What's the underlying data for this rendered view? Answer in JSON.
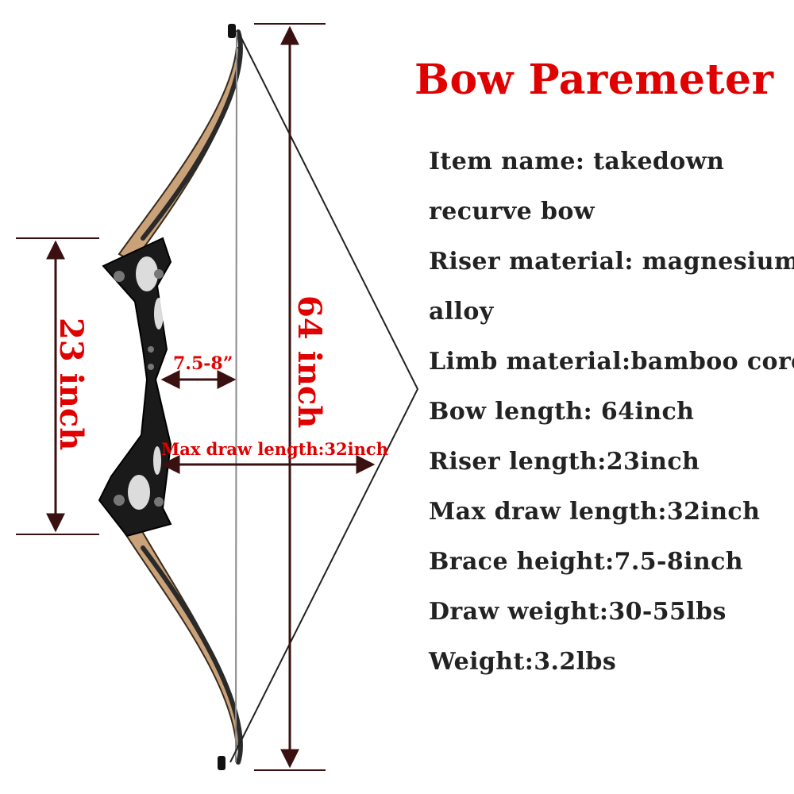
{
  "title": "Bow Paremeter",
  "specs": [
    "Item name: takedown",
    "recurve bow",
    "Riser material: magnesium",
    "alloy",
    "Limb material:bamboo core",
    "Bow length: 64inch",
    "Riser length:23inch",
    "Max draw length:32inch",
    "Brace height:7.5-8inch",
    "Draw weight:30-55lbs",
    "Weight:3.2lbs"
  ],
  "dimensions": {
    "riser": "23 inch",
    "bow_length": "64 inch",
    "brace_height": "7.5-8”",
    "max_draw": "Max draw length:32inch"
  },
  "colors": {
    "accent": "#e00000",
    "text": "#222222",
    "arrow": "#3a1010",
    "limb_face": "#c9a27a",
    "riser": "#1a1a1a"
  }
}
